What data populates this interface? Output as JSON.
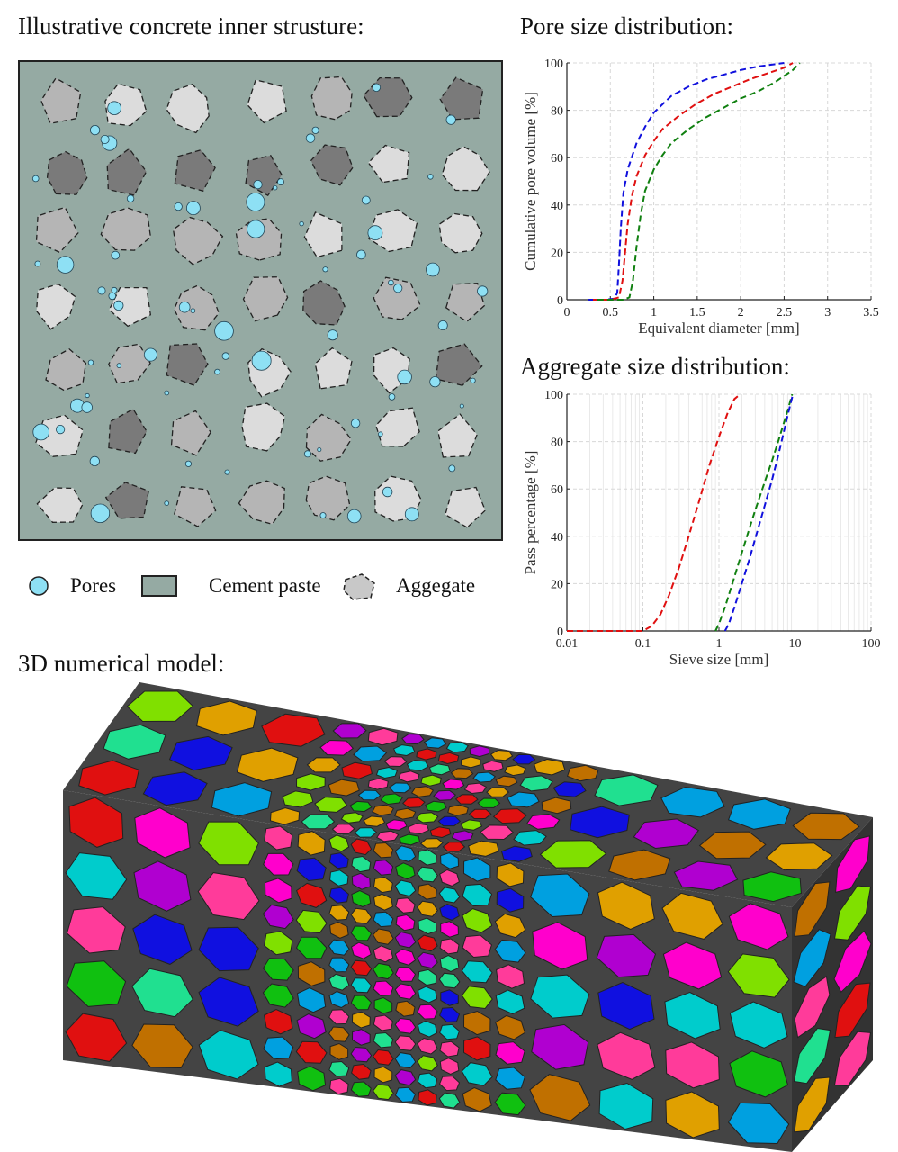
{
  "left_panel": {
    "title": "Illustrative concrete inner strusture:",
    "colors": {
      "paste": "#95aaa3",
      "pore": "#8ee0f4",
      "agg_light": "#dcdcdc",
      "agg_mid": "#b5b5b5",
      "agg_dark": "#7a7a7a"
    }
  },
  "legend": {
    "items": [
      {
        "label": "Pores",
        "icon": "pore-circle-icon"
      },
      {
        "label": "Cement paste",
        "icon": "paste-square-icon"
      },
      {
        "label": "Aggegate",
        "icon": "aggregate-polygon-icon"
      }
    ]
  },
  "bottom_panel": {
    "title": "3D numerical model:",
    "palette": [
      "#e01010",
      "#ff00cc",
      "#1010e0",
      "#10c010",
      "#e0a000",
      "#00cccc",
      "#b000d0",
      "#80e000",
      "#00a0e0",
      "#20e090",
      "#c07000",
      "#ff3b9a"
    ]
  },
  "chart_data": [
    {
      "type": "line",
      "title": "Pore size distribution:",
      "xlabel": "Equivalent diameter [mm]",
      "ylabel": "Cumulative pore volume [%]",
      "xlim": [
        0,
        3.5
      ],
      "ylim": [
        0,
        100
      ],
      "xticks": [
        "0",
        "0.5",
        "1",
        "1.5",
        "2",
        "2.5",
        "3",
        "3.5"
      ],
      "yticks": [
        "0",
        "20",
        "40",
        "60",
        "80",
        "100"
      ],
      "grid": true,
      "series": [
        {
          "color": "#1010dd",
          "x": [
            0.25,
            0.45,
            0.55,
            0.58,
            0.6,
            0.62,
            0.65,
            0.7,
            0.8,
            0.9,
            1.0,
            1.2,
            1.4,
            1.6,
            1.8,
            2.0,
            2.2,
            2.4,
            2.5
          ],
          "y": [
            0,
            0,
            0.5,
            3,
            15,
            30,
            45,
            55,
            66,
            73,
            79,
            86,
            90,
            93,
            95,
            97,
            98.5,
            99.5,
            100
          ]
        },
        {
          "color": "#e01010",
          "x": [
            0.3,
            0.5,
            0.6,
            0.64,
            0.67,
            0.7,
            0.75,
            0.8,
            0.9,
            1.0,
            1.1,
            1.3,
            1.5,
            1.7,
            1.9,
            2.1,
            2.3,
            2.5,
            2.6
          ],
          "y": [
            0,
            0,
            1,
            8,
            20,
            32,
            44,
            52,
            61,
            67,
            72,
            78,
            83,
            87,
            90,
            93,
            95.5,
            98,
            100
          ]
        },
        {
          "color": "#108010",
          "x": [
            0.35,
            0.65,
            0.72,
            0.76,
            0.8,
            0.85,
            0.9,
            1.0,
            1.1,
            1.2,
            1.4,
            1.6,
            1.8,
            2.0,
            2.2,
            2.4,
            2.6,
            2.68
          ],
          "y": [
            0,
            0,
            1,
            8,
            22,
            36,
            46,
            55,
            61,
            66,
            72,
            77,
            81,
            85,
            88,
            92,
            97,
            100
          ]
        }
      ]
    },
    {
      "type": "line",
      "title": "Aggregate size distribution:",
      "xlabel": "Sieve size [mm]",
      "ylabel": "Pass percentage [%]",
      "xscale": "log",
      "xlim": [
        0.01,
        100
      ],
      "ylim": [
        0,
        100
      ],
      "xticks": [
        "0.01",
        "0.1",
        "1",
        "10",
        "100"
      ],
      "yticks": [
        "0",
        "20",
        "40",
        "60",
        "80",
        "100"
      ],
      "grid": true,
      "series": [
        {
          "color": "#e01010",
          "x": [
            0.01,
            0.1,
            0.13,
            0.17,
            0.22,
            0.3,
            0.4,
            0.55,
            0.75,
            1.0,
            1.3,
            1.6,
            1.9
          ],
          "y": [
            0,
            0,
            2,
            7,
            15,
            27,
            40,
            55,
            70,
            82,
            92,
            98,
            100
          ]
        },
        {
          "color": "#108010",
          "x": [
            0.9,
            1.0,
            1.2,
            1.5,
            2,
            2.5,
            3,
            4,
            5,
            6,
            7,
            8,
            9.2
          ],
          "y": [
            0,
            3,
            10,
            20,
            33,
            43,
            51,
            63,
            72,
            80,
            87,
            93,
            100
          ]
        },
        {
          "color": "#1010dd",
          "x": [
            1.2,
            1.35,
            1.6,
            2,
            2.5,
            3,
            4,
            5,
            6,
            7,
            8,
            9.4
          ],
          "y": [
            0,
            3,
            10,
            20,
            30,
            39,
            53,
            64,
            74,
            83,
            91,
            100
          ]
        }
      ]
    }
  ]
}
